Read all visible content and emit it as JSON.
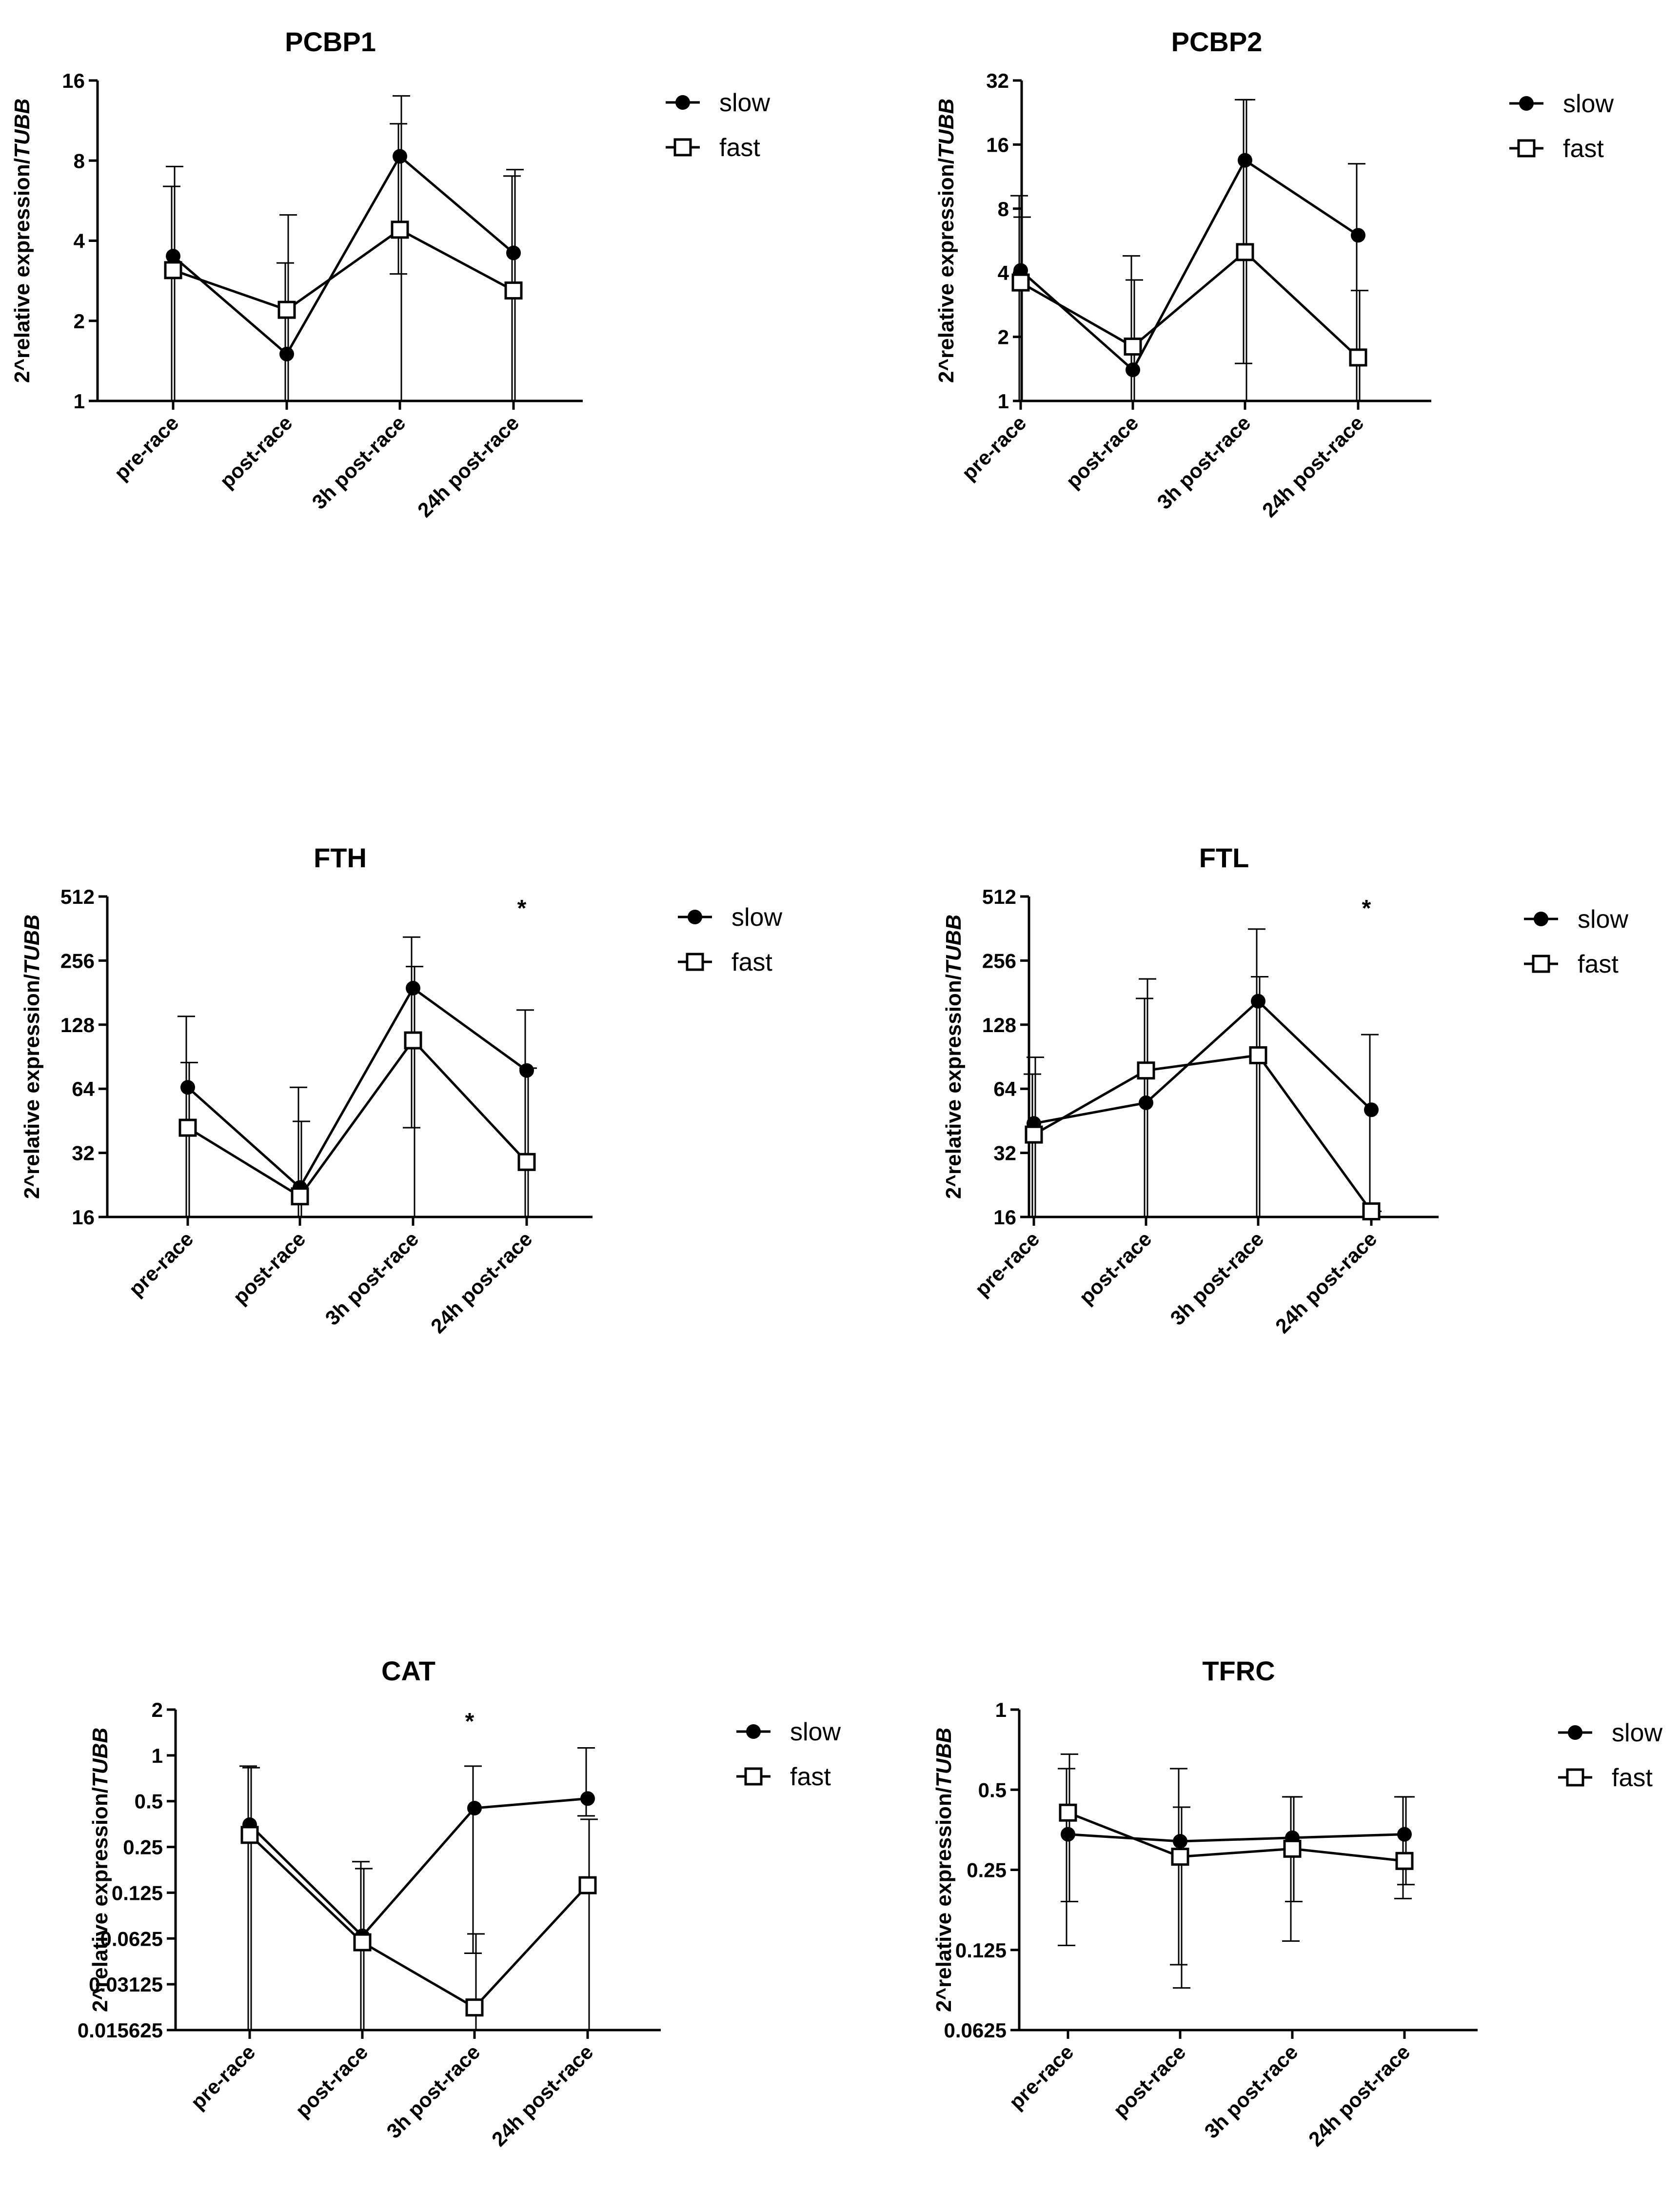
{
  "chart_data": [
    {
      "type": "line",
      "title": "PCBP1",
      "ylabel_prefix": "2^relative expression/",
      "ylabel_italic": "TUBB",
      "xlabel": "",
      "y_scale": "log2",
      "ylim": [
        1,
        16
      ],
      "y_ticks": [
        1,
        2,
        4,
        8,
        16
      ],
      "y_tick_labels": [
        "1",
        "2",
        "4",
        "8",
        "16"
      ],
      "categories": [
        "pre-race",
        "post-race",
        "3h post-race",
        "24h post-race"
      ],
      "legend_position": "right",
      "annotations": [],
      "series": [
        {
          "name": "slow",
          "marker": "filled-circle",
          "values": [
            3.5,
            1.5,
            8.3,
            3.6
          ],
          "err_low": [
            1,
            1,
            3,
            1
          ],
          "err_high": [
            6.4,
            3.3,
            11.0,
            7.0
          ]
        },
        {
          "name": "fast",
          "marker": "open-square",
          "values": [
            3.1,
            2.2,
            4.4,
            2.6
          ],
          "err_low": [
            1,
            1,
            1,
            1
          ],
          "err_high": [
            7.6,
            5.0,
            14.0,
            7.4
          ]
        }
      ]
    },
    {
      "type": "line",
      "title": "PCBP2",
      "ylabel_prefix": "2^relative expression/",
      "ylabel_italic": "TUBB",
      "xlabel": "",
      "y_scale": "log2",
      "ylim": [
        1,
        32
      ],
      "y_ticks": [
        1,
        2,
        4,
        8,
        16,
        32
      ],
      "y_tick_labels": [
        "1",
        "2",
        "4",
        "8",
        "16",
        "32"
      ],
      "categories": [
        "pre-race",
        "post-race",
        "3h post-race",
        "24h post-race"
      ],
      "legend_position": "right",
      "annotations": [],
      "series": [
        {
          "name": "slow",
          "marker": "filled-circle",
          "values": [
            4.1,
            1.4,
            13.5,
            6.0
          ],
          "err_low": [
            1,
            1,
            1.5,
            1
          ],
          "err_high": [
            9.2,
            4.8,
            26,
            13
          ]
        },
        {
          "name": "fast",
          "marker": "open-square",
          "values": [
            3.6,
            1.8,
            5.0,
            1.6
          ],
          "err_low": [
            1,
            1,
            1,
            1
          ],
          "err_high": [
            7.3,
            3.7,
            26,
            3.3
          ]
        }
      ]
    },
    {
      "type": "line",
      "title": "FTH",
      "ylabel_prefix": "2^relative expression/",
      "ylabel_italic": "TUBB",
      "xlabel": "",
      "y_scale": "log2",
      "ylim": [
        16,
        512
      ],
      "y_ticks": [
        16,
        32,
        64,
        128,
        256,
        512
      ],
      "y_tick_labels": [
        "16",
        "32",
        "64",
        "128",
        "256",
        "512"
      ],
      "categories": [
        "pre-race",
        "post-race",
        "3h post-race",
        "24h post-race"
      ],
      "legend_position": "right",
      "annotations": [
        {
          "text": "*",
          "category": "24h post-race"
        }
      ],
      "series": [
        {
          "name": "slow",
          "marker": "filled-circle",
          "values": [
            65,
            22,
            190,
            78
          ],
          "err_low": [
            16,
            16,
            42,
            16
          ],
          "err_high": [
            140,
            65,
            330,
            150
          ]
        },
        {
          "name": "fast",
          "marker": "open-square",
          "values": [
            42,
            20,
            108,
            29
          ],
          "err_low": [
            16,
            16,
            16,
            16
          ],
          "err_high": [
            85,
            45,
            240,
            80
          ]
        }
      ]
    },
    {
      "type": "line",
      "title": "FTL",
      "ylabel_prefix": "2^relative expression/",
      "ylabel_italic": "TUBB",
      "xlabel": "",
      "y_scale": "log2",
      "ylim": [
        16,
        512
      ],
      "y_ticks": [
        16,
        32,
        64,
        128,
        256,
        512
      ],
      "y_tick_labels": [
        "16",
        "32",
        "64",
        "128",
        "256",
        "512"
      ],
      "categories": [
        "pre-race",
        "post-race",
        "3h post-race",
        "24h post-race"
      ],
      "legend_position": "right",
      "annotations": [
        {
          "text": "*",
          "category": "24h post-race"
        }
      ],
      "series": [
        {
          "name": "slow",
          "marker": "filled-circle",
          "values": [
            44,
            55,
            165,
            51
          ],
          "err_low": [
            16,
            16,
            16,
            16
          ],
          "err_high": [
            75,
            170,
            360,
            115
          ]
        },
        {
          "name": "fast",
          "marker": "open-square",
          "values": [
            39,
            78,
            92,
            17
          ],
          "err_low": [
            16,
            16,
            16,
            16
          ],
          "err_high": [
            90,
            210,
            215,
            17
          ]
        }
      ]
    },
    {
      "type": "line",
      "title": "CAT",
      "ylabel_prefix": "2^relative expression/",
      "ylabel_italic": "TUBB",
      "xlabel": "",
      "y_scale": "log2",
      "ylim": [
        0.015625,
        2
      ],
      "y_ticks": [
        0.015625,
        0.03125,
        0.0625,
        0.125,
        0.25,
        0.5,
        1,
        2
      ],
      "y_tick_labels": [
        "0.015625",
        "0.03125",
        "0.0625",
        "0.125",
        "0.25",
        "0.5",
        "1",
        "2"
      ],
      "categories": [
        "pre-race",
        "post-race",
        "3h post-race",
        "24h post-race"
      ],
      "legend_position": "right",
      "annotations": [
        {
          "text": "*",
          "category": "3h post-race"
        }
      ],
      "series": [
        {
          "name": "slow",
          "marker": "filled-circle",
          "values": [
            0.35,
            0.065,
            0.45,
            0.52
          ],
          "err_low": [
            0.015625,
            0.015625,
            0.05,
            0.4
          ],
          "err_high": [
            0.85,
            0.2,
            0.85,
            1.12
          ]
        },
        {
          "name": "fast",
          "marker": "open-square",
          "values": [
            0.3,
            0.059,
            0.022,
            0.14
          ],
          "err_low": [
            0.015625,
            0.015625,
            0.015625,
            0.015625
          ],
          "err_high": [
            0.83,
            0.18,
            0.067,
            0.38
          ]
        }
      ]
    },
    {
      "type": "line",
      "title": "TFRC",
      "ylabel_prefix": "2^relative expression/",
      "ylabel_italic": "TUBB",
      "xlabel": "",
      "y_scale": "log2",
      "ylim": [
        0.0625,
        1
      ],
      "y_ticks": [
        0.0625,
        0.125,
        0.25,
        0.5,
        1
      ],
      "y_tick_labels": [
        "0.0625",
        "0.125",
        "0.25",
        "0.5",
        "1"
      ],
      "categories": [
        "pre-race",
        "post-race",
        "3h post-race",
        "24h post-race"
      ],
      "legend_position": "right",
      "annotations": [],
      "series": [
        {
          "name": "slow",
          "marker": "filled-circle",
          "values": [
            0.34,
            0.32,
            0.33,
            0.34
          ],
          "err_low": [
            0.13,
            0.11,
            0.135,
            0.195
          ],
          "err_high": [
            0.6,
            0.6,
            0.47,
            0.47
          ]
        },
        {
          "name": "fast",
          "marker": "open-square",
          "values": [
            0.41,
            0.28,
            0.3,
            0.27
          ],
          "err_low": [
            0.19,
            0.09,
            0.19,
            0.22
          ],
          "err_high": [
            0.68,
            0.43,
            0.47,
            0.47
          ]
        }
      ]
    }
  ]
}
